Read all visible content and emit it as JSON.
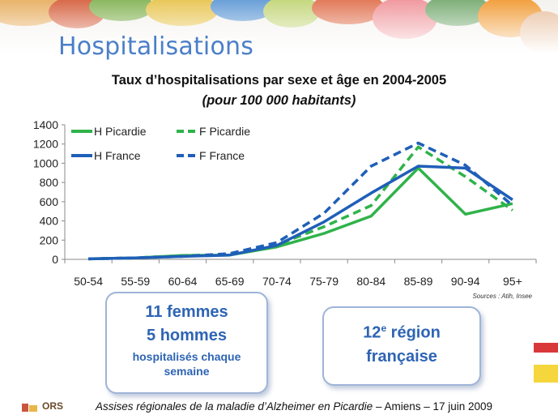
{
  "slide": {
    "title": "Hospitalisations"
  },
  "chart_data": {
    "type": "line",
    "title": "Taux d’hospitalisations par sexe et âge en 2004-2005",
    "subtitle": "(pour 100 000 habitants)",
    "categories": [
      "50-54",
      "55-59",
      "60-64",
      "65-69",
      "70-74",
      "75-79",
      "80-84",
      "85-89",
      "90-94",
      "95+"
    ],
    "ylim": [
      0,
      1400
    ],
    "yticks": [
      "0",
      "200",
      "400",
      "600",
      "800",
      "1000",
      "1200",
      "1400"
    ],
    "grid": false,
    "legend_position": "top-left",
    "series": [
      {
        "name": "H Picardie",
        "color": "#2fb34a",
        "dash": false,
        "values": [
          5,
          15,
          40,
          45,
          130,
          270,
          450,
          950,
          470,
          580
        ]
      },
      {
        "name": "F Picardie",
        "color": "#2fb34a",
        "dash": true,
        "values": [
          5,
          15,
          40,
          50,
          150,
          340,
          560,
          1170,
          860,
          510
        ]
      },
      {
        "name": "H France",
        "color": "#1f5fb8",
        "dash": false,
        "values": [
          5,
          15,
          30,
          45,
          145,
          390,
          690,
          970,
          950,
          620
        ]
      },
      {
        "name": "F France",
        "color": "#1f5fb8",
        "dash": true,
        "values": [
          5,
          15,
          30,
          60,
          175,
          480,
          970,
          1210,
          980,
          560
        ]
      }
    ],
    "sources": "Sources : Atih, Insee"
  },
  "callouts": {
    "left": {
      "line1": "11 femmes",
      "line2": "5 hommes",
      "line3": "hospitalisés chaque",
      "line4": "semaine"
    },
    "right": {
      "num": "12",
      "sup": "e",
      "line1_rest": " région",
      "line2": "française"
    }
  },
  "footer": {
    "logo": "ORS",
    "italic": "Assises régionales de la maladie d’Alzheimer en Picardie",
    "rest": " – Amiens – 17 juin 2009"
  },
  "colors": {
    "title_blue": "#4a7fc8",
    "callout_text": "#2e64b4",
    "green": "#2fb34a",
    "blue": "#1f5fb8"
  }
}
